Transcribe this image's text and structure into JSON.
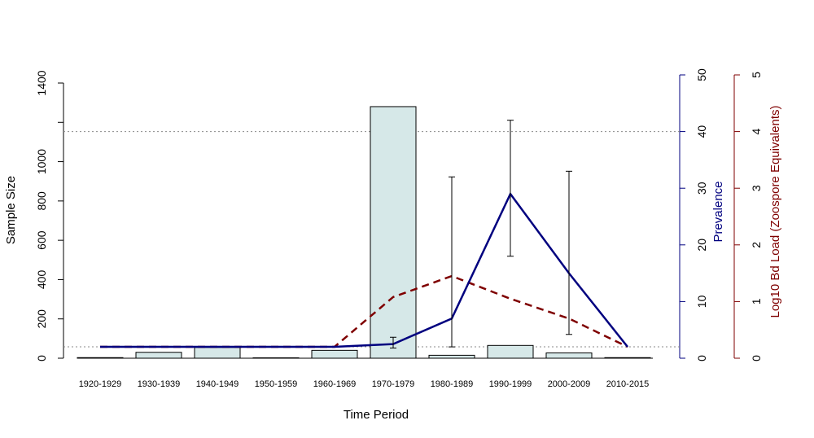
{
  "chart_data": {
    "type": "bar",
    "categories": [
      "1920-1929",
      "1930-1939",
      "1940-1949",
      "1950-1959",
      "1960-1969",
      "1970-1979",
      "1980-1989",
      "1990-1999",
      "2000-2009",
      "2010-2015"
    ],
    "xlabel": "Time Period",
    "sample_size": {
      "label": "Sample Size",
      "values": [
        3,
        30,
        55,
        2,
        40,
        1280,
        15,
        65,
        27,
        3
      ],
      "ylim": [
        0,
        1400
      ],
      "ticks": [
        0,
        200,
        400,
        600,
        800,
        1000,
        1200,
        1400
      ],
      "tick_labels": [
        "0",
        "200",
        "400",
        "600",
        "800",
        "1000",
        "",
        "1400"
      ]
    },
    "prevalence": {
      "label": "Prevalence",
      "color": "#00007f",
      "values": [
        0,
        0,
        0,
        0,
        0,
        2.5,
        7,
        29,
        15,
        0
      ],
      "errors": [
        null,
        null,
        null,
        null,
        null,
        [
          1.8,
          3.7
        ],
        [
          2,
          32
        ],
        [
          18,
          42
        ],
        [
          null,
          null
        ],
        null
      ],
      "ylim": [
        0,
        50
      ],
      "ticks": [
        0,
        10,
        20,
        30,
        40,
        50
      ]
    },
    "bd_load": {
      "label": "Log10 Bd Load (Zoospore Equivalents)",
      "color": "#7f0000",
      "values": [
        0,
        0,
        0,
        0,
        0,
        1.08,
        1.45,
        1.05,
        0.7,
        0
      ],
      "errors": [
        null,
        null,
        null,
        null,
        null,
        null,
        null,
        null,
        [
          0.42,
          3.3
        ],
        null
      ],
      "ylim": [
        0,
        5
      ],
      "ticks": [
        0,
        1,
        2,
        3,
        4,
        5
      ]
    },
    "reference_lines": {
      "prevalence": [
        40,
        0
      ]
    },
    "grid": false
  }
}
